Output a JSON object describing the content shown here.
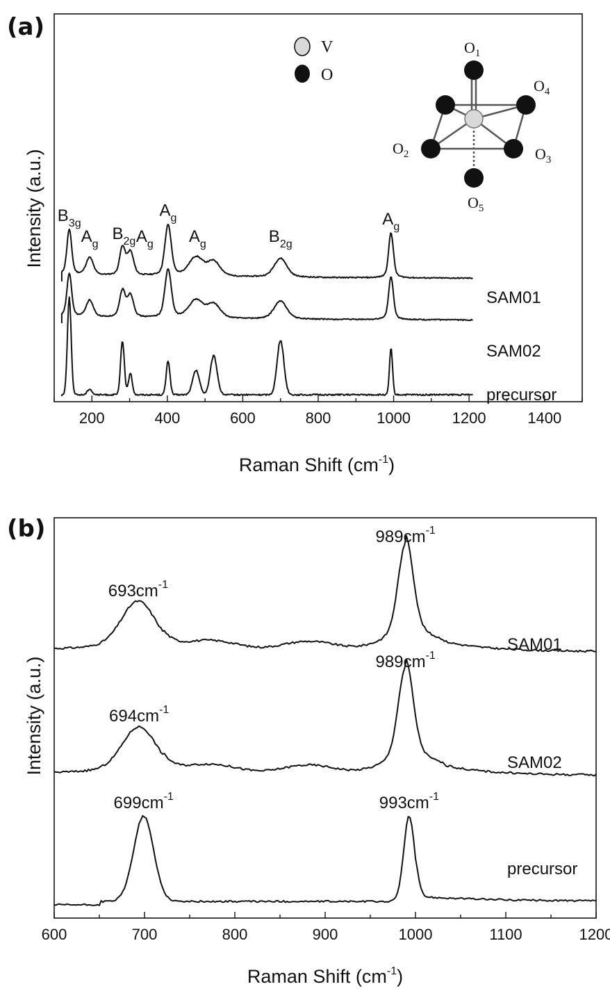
{
  "chart_data": [
    {
      "panel": "(a)",
      "type": "line",
      "xlabel": "Raman Shift (cm",
      "xlabel_sup": "-1",
      "xlabel_end": ")",
      "ylabel": "Intensity (a.u.)",
      "xlim": [
        100,
        1500
      ],
      "x_ticks": [
        200,
        400,
        600,
        800,
        1000,
        1200,
        1400
      ],
      "x_minor_step": 100,
      "grid": false,
      "peaks": [
        140,
        194,
        281,
        302,
        402,
        476,
        523,
        700,
        993
      ],
      "series": [
        {
          "name": "SAM01",
          "peak_heights": [
            0.62,
            0.24,
            0.38,
            0.32,
            0.7,
            0.26,
            0.2,
            0.26,
            0.62
          ],
          "peak_widths": [
            6,
            9,
            7,
            8,
            8,
            18,
            16,
            16,
            6
          ],
          "broad": true,
          "baseline_shape": "decay"
        },
        {
          "name": "SAM02",
          "peak_heights": [
            0.62,
            0.24,
            0.38,
            0.32,
            0.7,
            0.26,
            0.2,
            0.26,
            0.62
          ],
          "peak_widths": [
            6,
            9,
            7,
            8,
            8,
            18,
            16,
            16,
            6
          ],
          "broad": true,
          "baseline_shape": "decay"
        },
        {
          "name": "precursor",
          "peak_heights": [
            1.0,
            0.06,
            0.55,
            0.22,
            0.35,
            0.25,
            0.4,
            0.56,
            0.48
          ],
          "peak_widths": [
            5,
            6,
            5,
            5,
            5,
            9,
            9,
            9,
            4
          ],
          "broad": false,
          "baseline_shape": "flat"
        }
      ],
      "annotations": [
        {
          "main": "B",
          "sub": "3g",
          "x": 140,
          "series": "SAM01"
        },
        {
          "main": "A",
          "sub": "g",
          "x": 194,
          "series": "SAM01"
        },
        {
          "main": "B",
          "sub": "2g",
          "x": 285,
          "series": "SAM01"
        },
        {
          "main": "A",
          "sub": "g",
          "x": 340,
          "series": "SAM01"
        },
        {
          "main": "A",
          "sub": "g",
          "x": 402,
          "series": "SAM01"
        },
        {
          "main": "A",
          "sub": "g",
          "x": 480,
          "series": "SAM01"
        },
        {
          "main": "B",
          "sub": "2g",
          "x": 700,
          "series": "SAM01"
        },
        {
          "main": "A",
          "sub": "g",
          "x": 993,
          "series": "SAM01"
        }
      ],
      "inset": {
        "legend": [
          {
            "name": "V",
            "color": "#d9d9d9"
          },
          {
            "name": "O",
            "color": "#111111"
          }
        ],
        "atom_labels": [
          {
            "main": "O",
            "sub": "1"
          },
          {
            "main": "O",
            "sub": "2"
          },
          {
            "main": "O",
            "sub": "3"
          },
          {
            "main": "O",
            "sub": "4"
          },
          {
            "main": "O",
            "sub": "5"
          }
        ]
      }
    },
    {
      "panel": "(b)",
      "type": "line",
      "xlabel": "Raman Shift (cm",
      "xlabel_sup": "-1",
      "xlabel_end": ")",
      "ylabel": "Intensity (a.u.)",
      "xlim": [
        600,
        1200
      ],
      "x_ticks": [
        600,
        700,
        800,
        900,
        1000,
        1100,
        1200
      ],
      "x_minor_step": 50,
      "grid": false,
      "series": [
        {
          "name": "SAM01",
          "peaks": [
            {
              "x": 693,
              "h": 0.5,
              "w": 18
            },
            {
              "x": 989,
              "h": 1.0,
              "w": 8
            }
          ],
          "shoulder": true
        },
        {
          "name": "SAM02",
          "peaks": [
            {
              "x": 694,
              "h": 0.48,
              "w": 18
            },
            {
              "x": 989,
              "h": 1.0,
              "w": 8
            }
          ],
          "shoulder": true
        },
        {
          "name": "precursor",
          "peaks": [
            {
              "x": 699,
              "h": 1.0,
              "w": 11
            },
            {
              "x": 993,
              "h": 1.0,
              "w": 6
            }
          ],
          "shoulder": false
        }
      ],
      "annotations": [
        {
          "value": "693cm",
          "sup": "-1",
          "x": 693,
          "series": "SAM01"
        },
        {
          "value": "989cm",
          "sup": "-1",
          "x": 989,
          "series": "SAM01"
        },
        {
          "value": "694cm",
          "sup": "-1",
          "x": 694,
          "series": "SAM02"
        },
        {
          "value": "989cm",
          "sup": "-1",
          "x": 989,
          "series": "SAM02"
        },
        {
          "value": "699cm",
          "sup": "-1",
          "x": 699,
          "series": "precursor"
        },
        {
          "value": "993cm",
          "sup": "-1",
          "x": 993,
          "series": "precursor"
        }
      ]
    }
  ]
}
